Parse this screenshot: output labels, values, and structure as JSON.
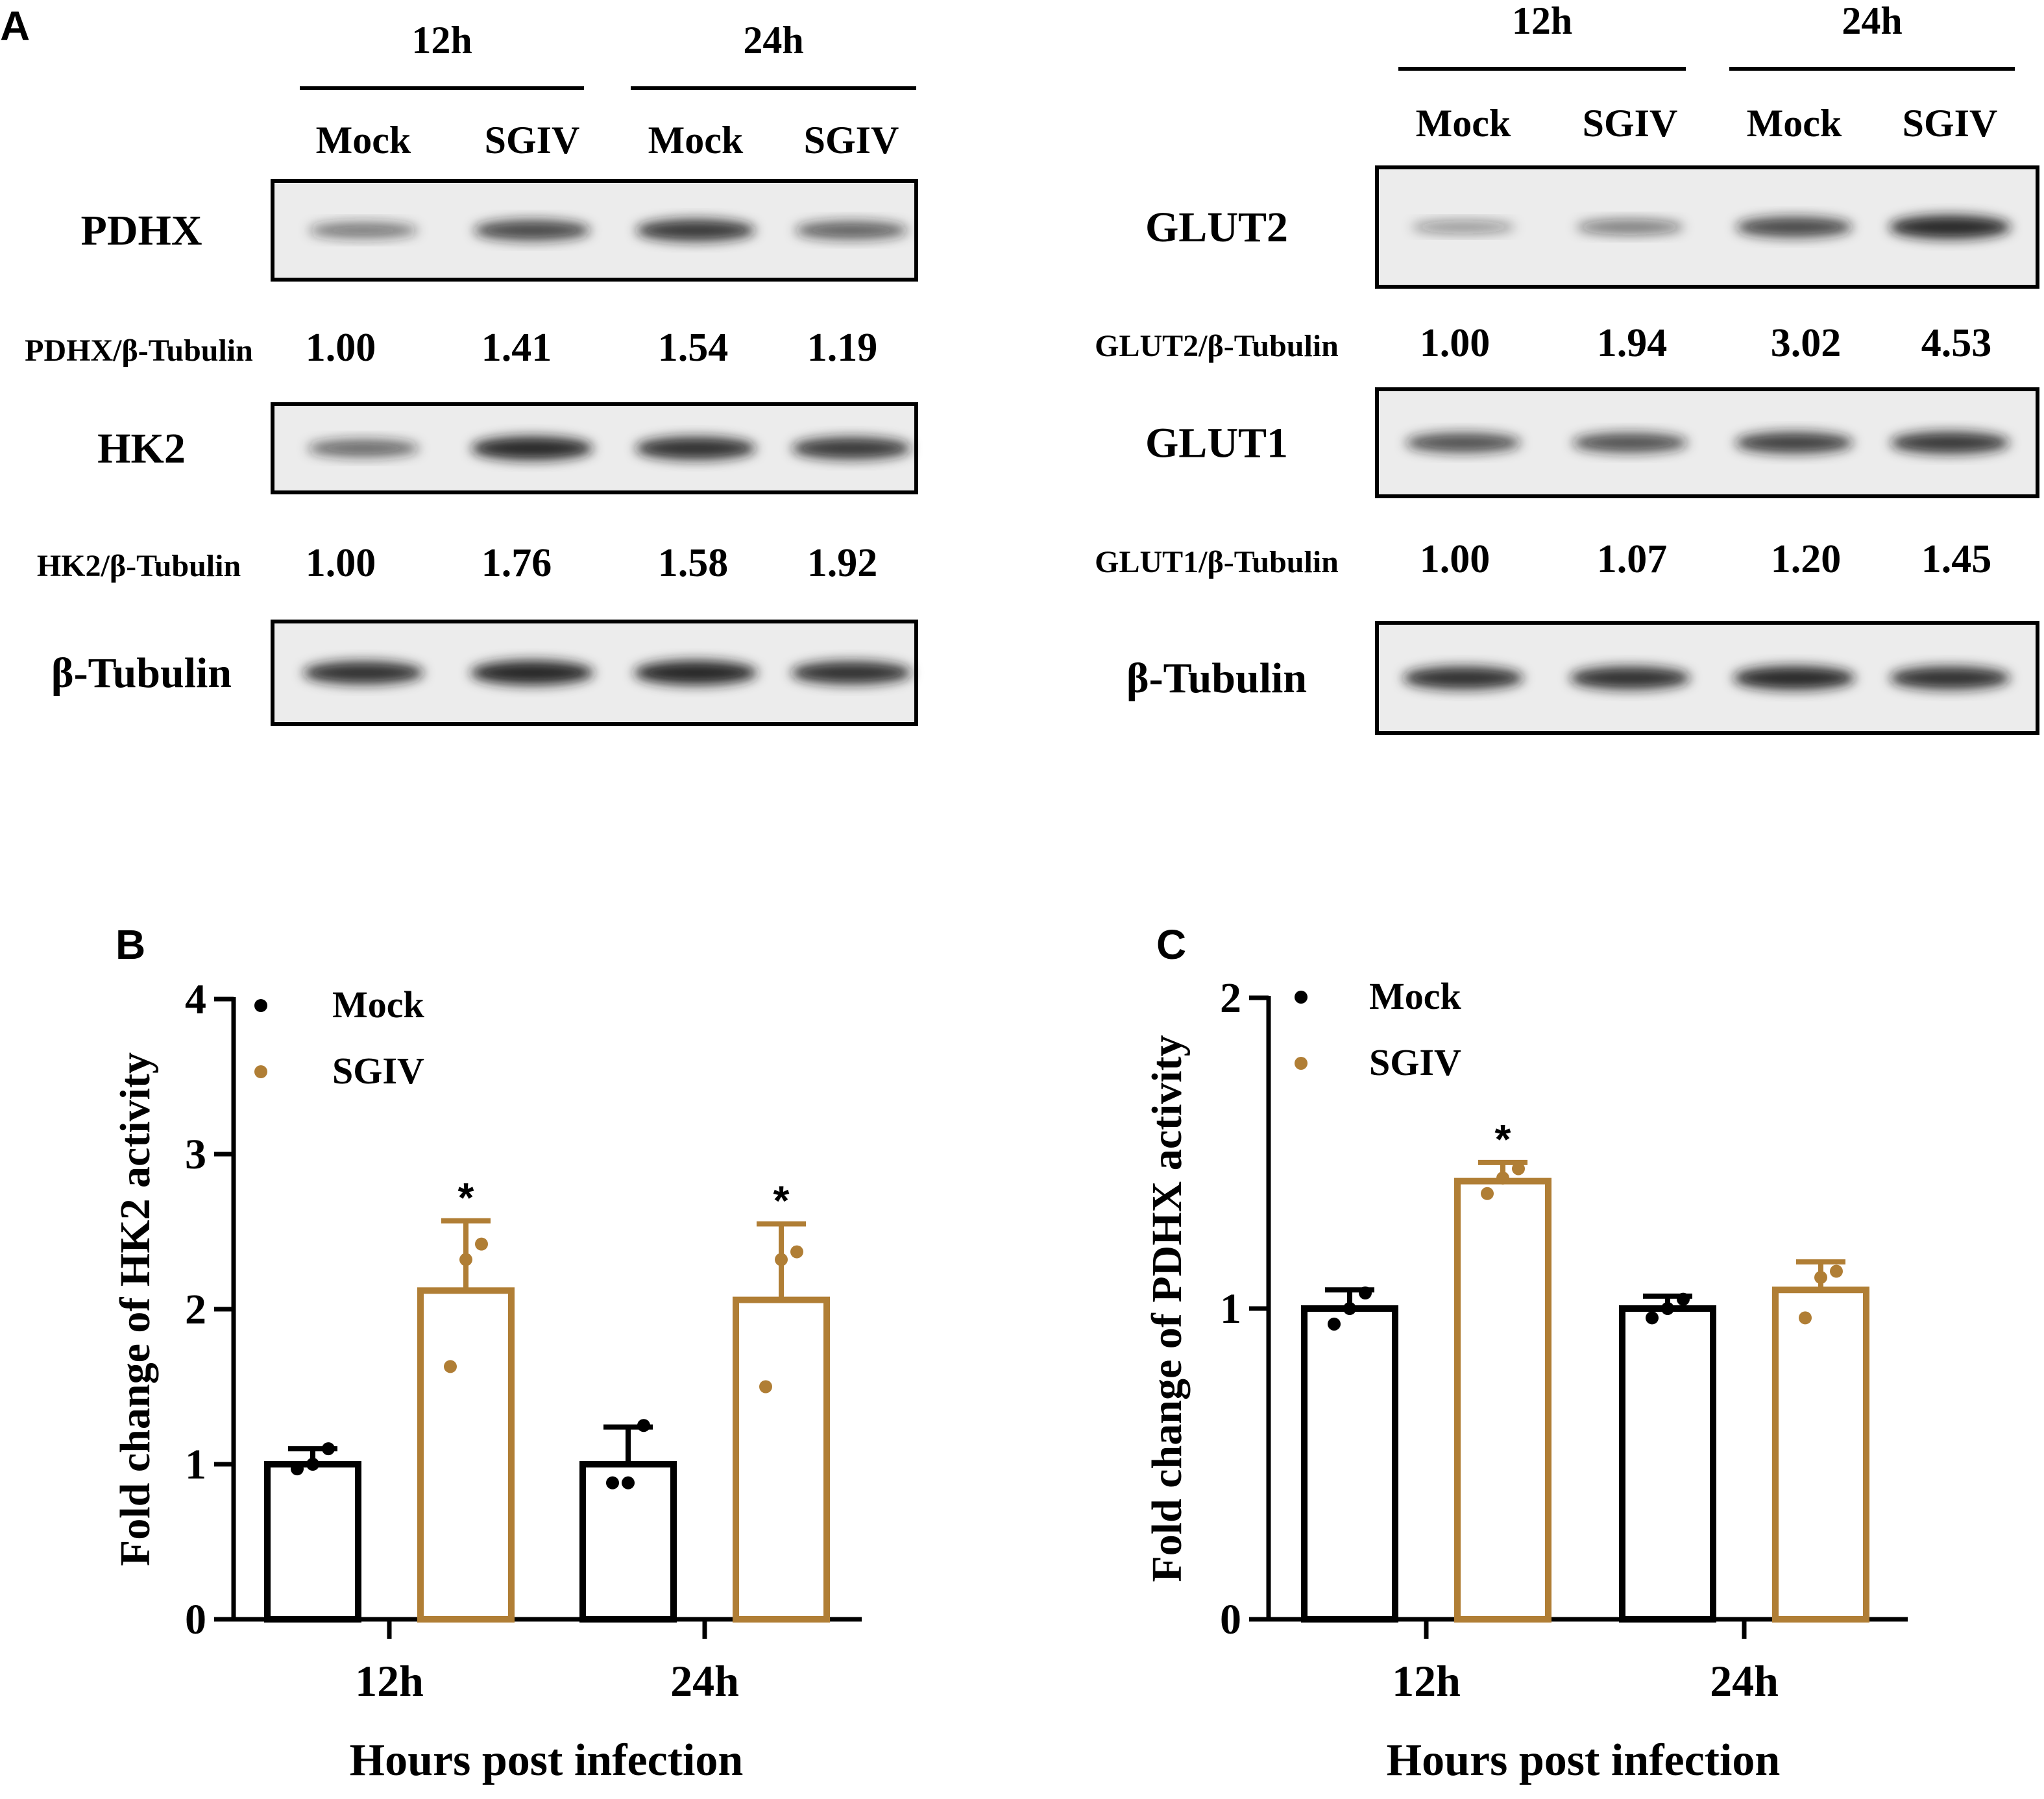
{
  "colors": {
    "mock": "#000000",
    "sgiv": "#b07e35",
    "blot_bg": "#ececec",
    "band": "#1a1a1a"
  },
  "panelA": {
    "label": "A",
    "left": {
      "groups": [
        "12h",
        "24h"
      ],
      "lanes": [
        "Mock",
        "SGIV",
        "Mock",
        "SGIV"
      ],
      "blots": [
        {
          "name": "PDHX",
          "ratio_label": "PDHX/β-Tubulin",
          "ratios": [
            "1.00",
            "1.41",
            "1.54",
            "1.19"
          ],
          "band_strength": [
            0.45,
            0.75,
            0.85,
            0.6
          ]
        },
        {
          "name": "HK2",
          "ratio_label": "HK2/β-Tubulin",
          "ratios": [
            "1.00",
            "1.76",
            "1.58",
            "1.92"
          ],
          "band_strength": [
            0.55,
            0.95,
            0.9,
            0.85
          ]
        },
        {
          "name": "β-Tubulin",
          "ratio_label": "",
          "ratios": [],
          "band_strength": [
            0.9,
            1.0,
            1.0,
            0.9
          ]
        }
      ]
    },
    "right": {
      "groups": [
        "12h",
        "24h"
      ],
      "lanes": [
        "Mock",
        "SGIV",
        "Mock",
        "SGIV"
      ],
      "blots": [
        {
          "name": "GLUT2",
          "ratio_label": "GLUT2/β-Tubulin",
          "ratios": [
            "1.00",
            "1.94",
            "3.02",
            "4.53"
          ],
          "band_strength": [
            0.25,
            0.4,
            0.75,
            0.95
          ]
        },
        {
          "name": "GLUT1",
          "ratio_label": "GLUT1/β-Tubulin",
          "ratios": [
            "1.00",
            "1.07",
            "1.20",
            "1.45"
          ],
          "band_strength": [
            0.7,
            0.7,
            0.8,
            0.85
          ]
        },
        {
          "name": "β-Tubulin",
          "ratio_label": "",
          "ratios": [],
          "band_strength": [
            0.9,
            0.9,
            0.95,
            0.9
          ]
        }
      ]
    }
  },
  "chart_data": [
    {
      "panel": "B",
      "type": "bar",
      "ylabel": "Fold change of HK2 activity",
      "xlabel": "Hours post infection",
      "categories": [
        "12h",
        "24h"
      ],
      "ylim": [
        0,
        4
      ],
      "yticks": [
        "0",
        "1",
        "2",
        "3",
        "4"
      ],
      "legend": [
        "Mock",
        "SGIV"
      ],
      "series": [
        {
          "name": "Mock",
          "values": [
            1.0,
            1.0
          ],
          "errors": [
            0.1,
            0.24
          ],
          "points": [
            [
              0.97,
              1.0,
              1.1
            ],
            [
              0.88,
              0.88,
              1.25
            ]
          ],
          "sig": [
            "",
            ""
          ]
        },
        {
          "name": "SGIV",
          "values": [
            2.12,
            2.06
          ],
          "errors": [
            0.45,
            0.49
          ],
          "points": [
            [
              1.63,
              2.32,
              2.42
            ],
            [
              1.5,
              2.32,
              2.37
            ]
          ],
          "sig": [
            "*",
            "*"
          ]
        }
      ]
    },
    {
      "panel": "C",
      "type": "bar",
      "ylabel": "Fold change of PDHX activity",
      "xlabel": "Hours post infection",
      "categories": [
        "12h",
        "24h"
      ],
      "ylim": [
        0,
        2
      ],
      "yticks": [
        "0",
        "1",
        "2"
      ],
      "legend": [
        "Mock",
        "SGIV"
      ],
      "series": [
        {
          "name": "Mock",
          "values": [
            1.0,
            1.0
          ],
          "errors": [
            0.06,
            0.04
          ],
          "points": [
            [
              0.95,
              1.0,
              1.05
            ],
            [
              0.97,
              1.0,
              1.03
            ]
          ],
          "sig": [
            "",
            ""
          ]
        },
        {
          "name": "SGIV",
          "values": [
            1.41,
            1.06
          ],
          "errors": [
            0.06,
            0.09
          ],
          "points": [
            [
              1.37,
              1.42,
              1.45
            ],
            [
              0.97,
              1.1,
              1.12
            ]
          ],
          "sig": [
            "*",
            ""
          ]
        }
      ]
    }
  ]
}
